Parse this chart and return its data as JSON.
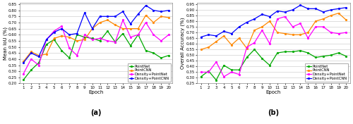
{
  "epochs": [
    1,
    2,
    3,
    4,
    5,
    6,
    7,
    8,
    9,
    10,
    11,
    12,
    13,
    14,
    15,
    16,
    17,
    18,
    19,
    20
  ],
  "iou": {
    "PointNet": [
      0.23,
      0.31,
      0.37,
      0.52,
      0.56,
      0.47,
      0.41,
      0.6,
      0.58,
      0.57,
      0.55,
      0.63,
      0.54,
      0.61,
      0.51,
      0.6,
      0.47,
      0.45,
      0.41,
      0.43
    ],
    "PointCNN": [
      0.38,
      0.46,
      0.43,
      0.44,
      0.57,
      0.59,
      0.58,
      0.55,
      0.56,
      0.65,
      0.7,
      0.72,
      0.68,
      0.65,
      0.65,
      0.65,
      0.76,
      0.7,
      0.75,
      0.74
    ],
    "Density+PointNet": [
      0.28,
      0.4,
      0.35,
      0.56,
      0.63,
      0.67,
      0.49,
      0.43,
      0.6,
      0.56,
      0.57,
      0.55,
      0.54,
      0.72,
      0.58,
      0.6,
      0.7,
      0.6,
      0.55,
      0.6
    ],
    "Density+PointCNN": [
      0.37,
      0.45,
      0.42,
      0.56,
      0.62,
      0.65,
      0.6,
      0.61,
      0.78,
      0.65,
      0.75,
      0.75,
      0.75,
      0.79,
      0.69,
      0.77,
      0.84,
      0.8,
      0.79,
      0.8
    ]
  },
  "oa": {
    "PointNet": [
      0.31,
      0.36,
      0.28,
      0.41,
      0.37,
      0.37,
      0.48,
      0.55,
      0.47,
      0.41,
      0.52,
      0.53,
      0.53,
      0.54,
      0.52,
      0.48,
      0.49,
      0.5,
      0.52,
      0.49
    ],
    "PointCNN": [
      0.55,
      0.57,
      0.62,
      0.67,
      0.59,
      0.65,
      0.56,
      0.72,
      0.75,
      0.8,
      0.7,
      0.69,
      0.68,
      0.68,
      0.7,
      0.8,
      0.82,
      0.85,
      0.87,
      0.81
    ],
    "Density+PointNet": [
      0.35,
      0.35,
      0.44,
      0.31,
      0.35,
      0.33,
      0.57,
      0.61,
      0.72,
      0.6,
      0.82,
      0.84,
      0.75,
      0.78,
      0.65,
      0.75,
      0.75,
      0.7,
      0.69,
      0.7
    ],
    "Density+PointCNN": [
      0.66,
      0.68,
      0.67,
      0.71,
      0.69,
      0.75,
      0.79,
      0.82,
      0.86,
      0.84,
      0.89,
      0.88,
      0.9,
      0.94,
      0.91,
      0.91,
      0.88,
      0.9,
      0.91,
      0.92
    ]
  },
  "colors": {
    "PointNet": "#00aa00",
    "PointCNN": "#ff8800",
    "Density+PointNet": "#ff00ff",
    "Density+PointCNN": "#0000ff"
  },
  "iou_ylim": [
    0.2,
    0.86
  ],
  "iou_yticks": [
    0.2,
    0.25,
    0.3,
    0.35,
    0.4,
    0.45,
    0.5,
    0.55,
    0.6,
    0.65,
    0.7,
    0.75,
    0.8,
    0.85
  ],
  "oa_ylim": [
    0.25,
    0.96
  ],
  "oa_yticks": [
    0.25,
    0.3,
    0.35,
    0.4,
    0.45,
    0.5,
    0.55,
    0.6,
    0.65,
    0.7,
    0.75,
    0.8,
    0.85,
    0.9,
    0.95
  ],
  "xlabel": "Epoch",
  "iou_ylabel": "Mean IoU (%)",
  "oa_ylabel": "Overall Accuracy (%)",
  "label_a": "(a)",
  "label_b": "(b)",
  "bg_color": "#ffffff",
  "grid_color": "#d0d0d0",
  "legend_names": [
    "PointNet",
    "PointCNN",
    "Density+PointNet",
    "Density+PointCNN"
  ]
}
